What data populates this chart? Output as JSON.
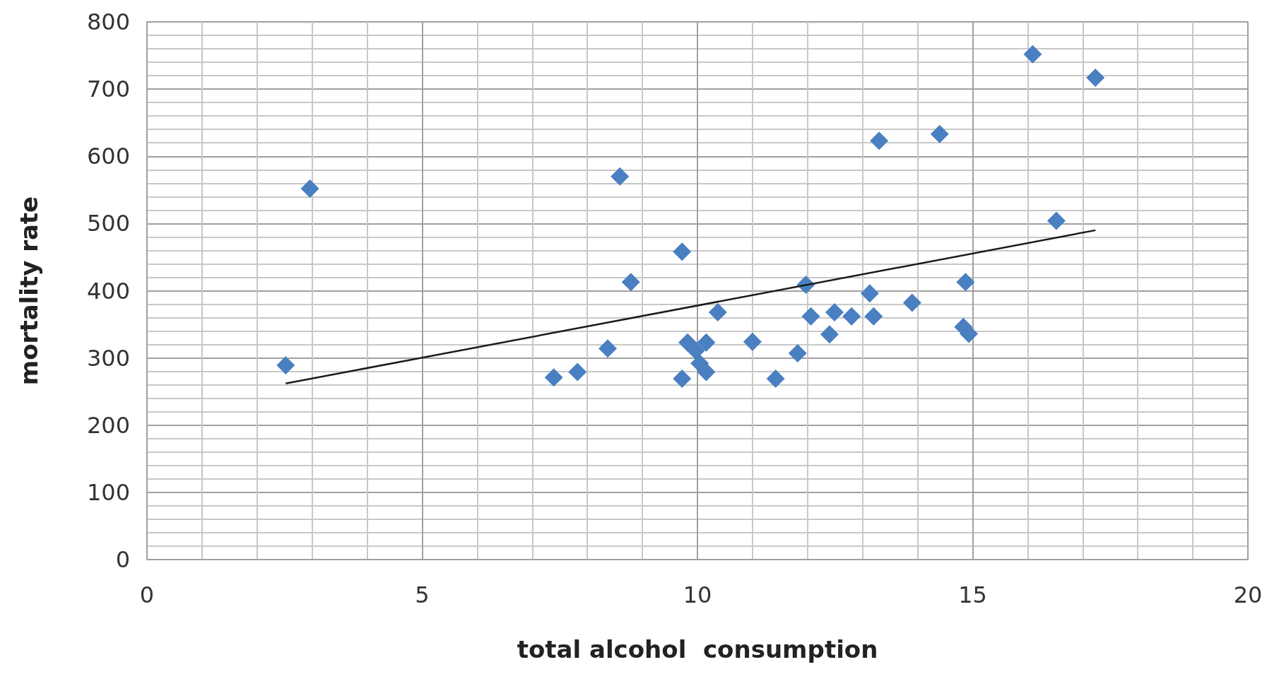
{
  "chart_data": {
    "type": "scatter",
    "xlabel": "total alcohol  consumption",
    "ylabel": "mortality rate",
    "grid": true,
    "xlim": [
      0,
      20
    ],
    "xticks": [
      0,
      5,
      10,
      15,
      20
    ],
    "ylim": [
      0,
      800
    ],
    "yticks": [
      0,
      100,
      200,
      300,
      400,
      500,
      600,
      700,
      800
    ],
    "series": [
      {
        "marker": "diamond",
        "color": "#4a7fc1",
        "x": [
          2.52,
          2.96,
          7.39,
          7.82,
          8.37,
          8.59,
          8.79,
          9.72,
          9.72,
          9.82,
          9.97,
          10.04,
          10.16,
          10.16,
          10.37,
          11.0,
          11.42,
          11.82,
          11.97,
          12.06,
          12.4,
          12.49,
          12.8,
          13.13,
          13.2,
          13.3,
          13.9,
          14.4,
          14.87,
          14.83,
          14.93,
          16.09,
          16.52,
          17.23
        ],
        "values": [
          289,
          552,
          271,
          279,
          314,
          570,
          413,
          458,
          269,
          323,
          311,
          292,
          323,
          279,
          368,
          324,
          269,
          307,
          409,
          362,
          335,
          368,
          362,
          396,
          362,
          623,
          382,
          633,
          413,
          346,
          336,
          752,
          504,
          717
        ]
      },
      {
        "type": "line",
        "color": "#1a1a1a",
        "x": [
          2.52,
          17.23
        ],
        "values": [
          262,
          490
        ]
      }
    ]
  }
}
